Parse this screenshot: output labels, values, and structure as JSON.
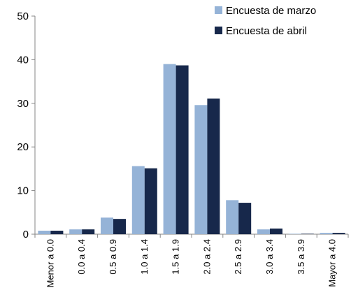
{
  "chart_data": {
    "type": "bar",
    "categories": [
      "Menor a 0.0",
      "0.0 a 0.4",
      "0.5 a 0.9",
      "1.0 a 1.4",
      "1.5 a 1.9",
      "2.0 a 2.4",
      "2.5 a 2.9",
      "3.0 a 3.4",
      "3.5 a 3.9",
      "Mayor a 4.0"
    ],
    "series": [
      {
        "name": "Encuesta de marzo",
        "color": "#95B3D7",
        "values": [
          0.8,
          1.1,
          3.8,
          15.6,
          39.0,
          29.6,
          7.8,
          1.1,
          0.1,
          0.3
        ]
      },
      {
        "name": "Encuesta de abril",
        "color": "#17284B",
        "values": [
          0.8,
          1.1,
          3.5,
          15.1,
          38.7,
          31.1,
          7.2,
          1.3,
          0.1,
          0.3
        ]
      }
    ],
    "ylim": [
      0,
      50
    ],
    "yticks": [
      0,
      10,
      20,
      30,
      40,
      50
    ],
    "legend_position": "top-right",
    "grid": false
  }
}
